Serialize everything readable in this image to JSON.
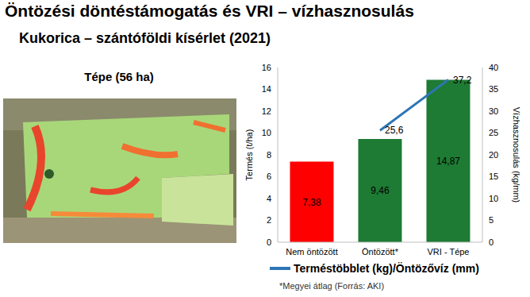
{
  "chart_data": {
    "type": "bar",
    "title": "Öntözési döntéstámogatás és VRI – vízhasznosulás",
    "subtitle": "Kukorica – szántóföldi kísérlet (2021)",
    "categories": [
      "Nem öntözött",
      "Öntözött*",
      "VRI - Tépe"
    ],
    "series": [
      {
        "type": "bar",
        "colors": [
          "#ff0000",
          "#1e7b34",
          "#1e7b34"
        ],
        "values": [
          7.38,
          9.46,
          14.87
        ],
        "value_labels": [
          "7,38",
          "9,46",
          "14,87"
        ]
      },
      {
        "name": "Terméstöbblet (kg)/Öntözővíz (mm)",
        "type": "line",
        "axis": "y2",
        "color": "#2e75b6",
        "marker": "none",
        "line_style": "solid",
        "values": [
          null,
          25.6,
          37.2
        ],
        "value_labels": [
          null,
          "25,6",
          "37,2"
        ]
      }
    ],
    "y_label": "Termés (t/ha)",
    "y2_label": "Vízhasznosulás (kg/mm)",
    "ylim": [
      0,
      16
    ],
    "yticks": [
      0,
      2,
      4,
      6,
      8,
      10,
      12,
      14,
      16
    ],
    "y2lim": [
      0,
      40
    ],
    "y2ticks": [
      0,
      5,
      10,
      15,
      20,
      25,
      30,
      35,
      40
    ],
    "grid": false,
    "legend": "bottom",
    "data_labels": true,
    "annotations": [
      "Tépe (56 ha)",
      "*Megyei átlag (Forrás: AKI)"
    ]
  }
}
